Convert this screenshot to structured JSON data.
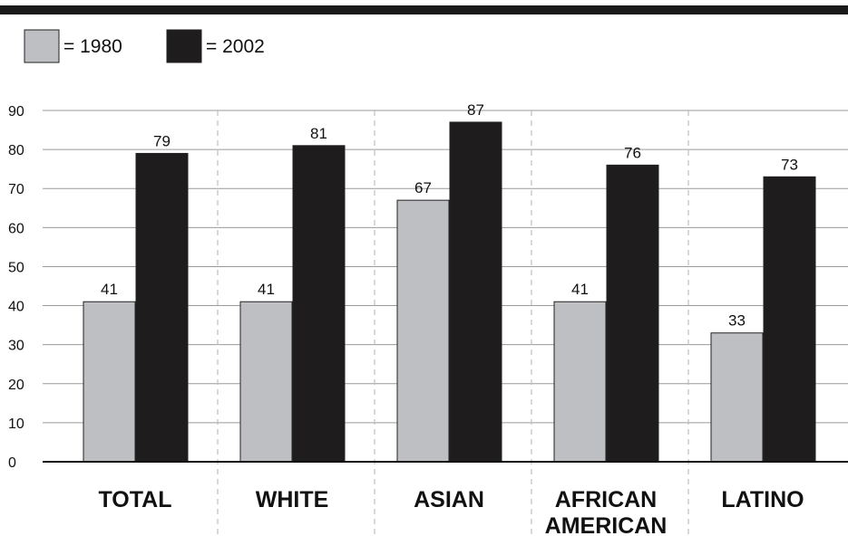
{
  "colors": {
    "series_1980": "#bdbfc2",
    "series_2002": "#1e1c1d",
    "bar_outline": "#222222",
    "gridline": "#9a9a9a",
    "separator": "#bdbdbd",
    "top_rule": "#1a1a1a"
  },
  "legend": [
    {
      "label": "= 1980",
      "color": "#bdbfc2"
    },
    {
      "label": "= 2002",
      "color": "#1e1c1d"
    }
  ],
  "chart_data": {
    "type": "bar",
    "title": "",
    "xlabel": "",
    "ylabel": "",
    "ylim": [
      0,
      90
    ],
    "yticks": [
      0,
      10,
      20,
      30,
      40,
      50,
      60,
      70,
      80,
      90
    ],
    "grid": true,
    "legend_position": "top-left",
    "categories": [
      [
        "TOTAL"
      ],
      [
        "WHITE"
      ],
      [
        "ASIAN"
      ],
      [
        "AFRICAN",
        "AMERICAN"
      ],
      [
        "LATINO"
      ]
    ],
    "series": [
      {
        "name": "1980",
        "color": "#bdbfc2",
        "values": [
          41,
          41,
          67,
          41,
          33
        ]
      },
      {
        "name": "2002",
        "color": "#1e1c1d",
        "values": [
          79,
          81,
          87,
          76,
          73
        ]
      }
    ]
  }
}
